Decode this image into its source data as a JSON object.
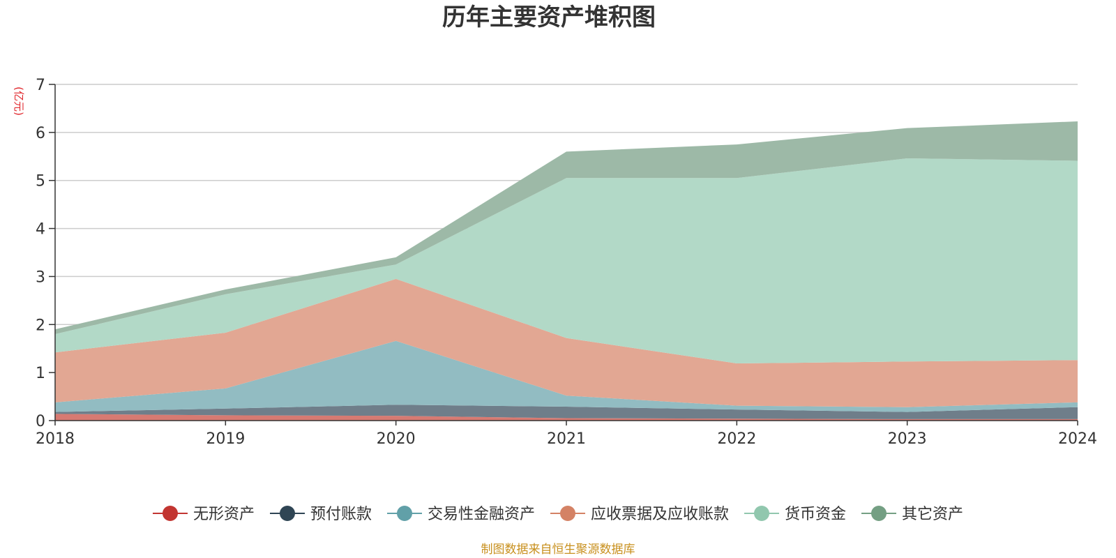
{
  "chart_data": {
    "type": "area",
    "stacked": true,
    "title": "历年主要资产堆积图",
    "unit_label": "(亿元)",
    "source": "制图数据来自恒生聚源数据库",
    "categories": [
      "2018",
      "2019",
      "2020",
      "2021",
      "2022",
      "2023",
      "2024"
    ],
    "ylim": [
      0,
      7
    ],
    "yticks": [
      "0",
      "1",
      "2",
      "3",
      "4",
      "5",
      "6",
      "7"
    ],
    "grid": true,
    "legend_position": "bottom",
    "series": [
      {
        "name": "无形资产",
        "color": "#c23531",
        "fill": "#d77a72",
        "values": [
          0.14,
          0.11,
          0.1,
          0.05,
          0.04,
          0.03,
          0.03
        ]
      },
      {
        "name": "预付账款",
        "color": "#2f4554",
        "fill": "#6f7e8a",
        "values": [
          0.04,
          0.14,
          0.23,
          0.24,
          0.19,
          0.15,
          0.25
        ]
      },
      {
        "name": "交易性金融资产",
        "color": "#61a0a8",
        "fill": "#92bcc2",
        "values": [
          0.2,
          0.42,
          1.33,
          0.23,
          0.08,
          0.1,
          0.1
        ]
      },
      {
        "name": "应收票据及应收账款",
        "color": "#d48265",
        "fill": "#e2a793",
        "values": [
          1.04,
          1.16,
          1.29,
          1.2,
          0.88,
          0.95,
          0.88
        ]
      },
      {
        "name": "货币资金",
        "color": "#91c7ae",
        "fill": "#b2d9c7",
        "values": [
          0.38,
          0.8,
          0.3,
          3.33,
          3.86,
          4.23,
          4.15
        ]
      },
      {
        "name": "其它资产",
        "color": "#749f83",
        "fill": "#9db9a7",
        "values": [
          0.1,
          0.1,
          0.15,
          0.55,
          0.7,
          0.63,
          0.82
        ]
      }
    ]
  }
}
